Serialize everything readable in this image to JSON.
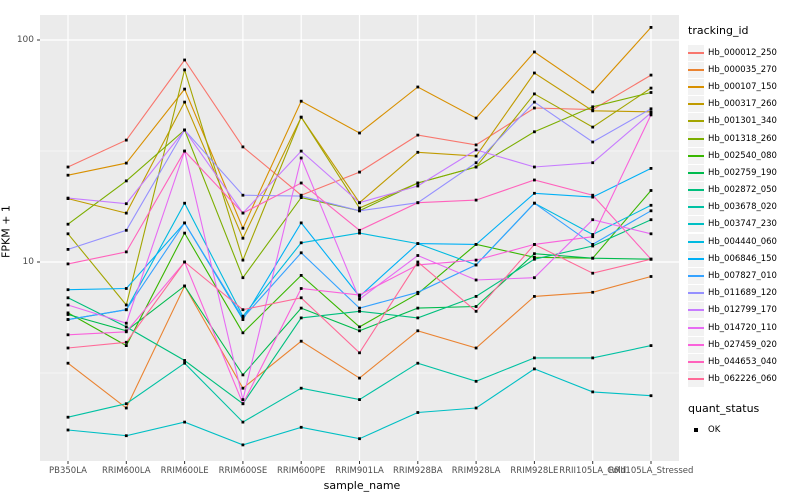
{
  "chart_data": {
    "type": "line",
    "title": "",
    "xlabel": "sample_name",
    "ylabel": "FPKM + 1",
    "yscale": "log10",
    "ylim": [
      1.28,
      130
    ],
    "grid": true,
    "legend_position": "right",
    "legend_title": "tracking_id",
    "point_legend": {
      "title": "quant_status",
      "items": [
        {
          "label": "OK",
          "shape": "filled-square",
          "color": "#000000"
        }
      ]
    },
    "panel_bg": "#EBEBEB",
    "grid_color": "#FFFFFF",
    "axis_text_color": "#4D4D4D",
    "point_color": "#000000",
    "y_major_ticks": [
      {
        "label": "10",
        "value": 10
      },
      {
        "label": "100",
        "value": 100
      }
    ],
    "y_minor_ticks": [
      3.1623,
      31.623
    ],
    "categories": [
      "PB350LA",
      "RRIM600LA",
      "RRIM600LE",
      "RRIM600SE",
      "RRIM600PE",
      "RRIM901LA",
      "RRIM928BA",
      "RRIM928LA",
      "RRIM928LE",
      "RRII105LA_Cold",
      "RRII105LA_Stressed"
    ],
    "series": [
      {
        "name": "Hb_000012_250",
        "color": "#F8766D",
        "values": [
          26.8,
          35.4,
          81.3,
          33.0,
          20.0,
          25.4,
          37.3,
          33.7,
          49.4,
          48.6,
          69.5
        ]
      },
      {
        "name": "Hb_000035_270",
        "color": "#EA8331",
        "values": [
          3.5,
          2.2,
          7.8,
          2.7,
          4.4,
          3.0,
          4.9,
          4.1,
          7.0,
          7.3,
          8.6
        ]
      },
      {
        "name": "Hb_000107_150",
        "color": "#D89000",
        "values": [
          24.6,
          27.9,
          60.1,
          14.2,
          53.0,
          38.1,
          61.4,
          44.5,
          88.3,
          58.4,
          114.0
        ]
      },
      {
        "name": "Hb_000317_260",
        "color": "#C09B00",
        "values": [
          19.3,
          16.6,
          52.5,
          12.8,
          44.9,
          18.5,
          31.2,
          30.0,
          71.0,
          48.0,
          47.5
        ]
      },
      {
        "name": "Hb_001301_340",
        "color": "#A3A500",
        "values": [
          13.4,
          6.4,
          73.3,
          10.2,
          44.9,
          17.5,
          22.7,
          26.8,
          57.2,
          40.5,
          60.7
        ]
      },
      {
        "name": "Hb_001318_260",
        "color": "#7CAE00",
        "values": [
          14.8,
          23.2,
          39.3,
          8.5,
          19.5,
          17.0,
          22.7,
          26.8,
          38.6,
          50.0,
          58.0
        ]
      },
      {
        "name": "Hb_002540_080",
        "color": "#39B600",
        "values": [
          5.9,
          4.2,
          13.5,
          4.8,
          8.7,
          5.1,
          7.2,
          12.0,
          10.5,
          10.4,
          21.0
        ]
      },
      {
        "name": "Hb_002759_190",
        "color": "#00BB4E",
        "values": [
          5.8,
          4.9,
          7.8,
          3.1,
          6.2,
          4.9,
          6.2,
          6.3,
          10.9,
          10.4,
          10.3
        ]
      },
      {
        "name": "Hb_002872_050",
        "color": "#00BF7D",
        "values": [
          6.9,
          5.1,
          3.6,
          2.3,
          5.6,
          6.0,
          5.6,
          7.0,
          10.3,
          11.8,
          15.5
        ]
      },
      {
        "name": "Hb_003678_020",
        "color": "#00C1A3",
        "values": [
          2.0,
          2.3,
          3.5,
          1.9,
          2.7,
          2.4,
          3.5,
          2.9,
          3.7,
          3.7,
          4.2
        ]
      },
      {
        "name": "Hb_003747_230",
        "color": "#00BFC4",
        "values": [
          1.75,
          1.65,
          1.9,
          1.5,
          1.8,
          1.6,
          2.1,
          2.2,
          3.3,
          2.6,
          2.5
        ]
      },
      {
        "name": "Hb_004440_060",
        "color": "#00BAE0",
        "values": [
          5.5,
          6.1,
          18.4,
          5.7,
          12.2,
          13.5,
          12.1,
          9.7,
          18.4,
          13.3,
          18.0
        ]
      },
      {
        "name": "Hb_006846_150",
        "color": "#00B0F6",
        "values": [
          7.5,
          7.6,
          15.0,
          5.5,
          15.0,
          7.0,
          12.1,
          12.0,
          20.4,
          19.6,
          26.4
        ]
      },
      {
        "name": "Hb_007827_010",
        "color": "#35A2FF",
        "values": [
          5.5,
          6.1,
          15.0,
          5.6,
          11.0,
          6.2,
          7.3,
          9.7,
          18.4,
          12.0,
          17.0
        ]
      },
      {
        "name": "Hb_011689_120",
        "color": "#9590FF",
        "values": [
          11.4,
          13.9,
          39.3,
          20.0,
          19.8,
          17.0,
          18.5,
          28.0,
          52.5,
          34.7,
          49.0
        ]
      },
      {
        "name": "Hb_012799_170",
        "color": "#C77CFF",
        "values": [
          19.4,
          18.3,
          39.3,
          16.6,
          31.6,
          18.5,
          22.0,
          32.0,
          26.8,
          28.0,
          47.0
        ]
      },
      {
        "name": "Hb_014720_110",
        "color": "#E76BF3",
        "values": [
          6.4,
          5.3,
          31.6,
          2.4,
          29.4,
          6.8,
          10.7,
          8.3,
          8.5,
          15.5,
          13.4
        ]
      },
      {
        "name": "Hb_027459_020",
        "color": "#FA62DB",
        "values": [
          4.7,
          4.85,
          10.0,
          2.3,
          7.6,
          7.1,
          9.7,
          10.2,
          12.0,
          13.0,
          46.0
        ]
      },
      {
        "name": "Hb_044653_040",
        "color": "#FF62BC",
        "values": [
          9.8,
          11.1,
          31.6,
          16.6,
          22.7,
          13.9,
          18.5,
          19.0,
          23.4,
          20.0,
          10.3
        ]
      },
      {
        "name": "Hb_062226_060",
        "color": "#FF6A98",
        "values": [
          4.1,
          4.35,
          10.0,
          6.1,
          6.9,
          3.9,
          10.0,
          6.0,
          12.0,
          8.9,
          10.3
        ]
      }
    ]
  }
}
